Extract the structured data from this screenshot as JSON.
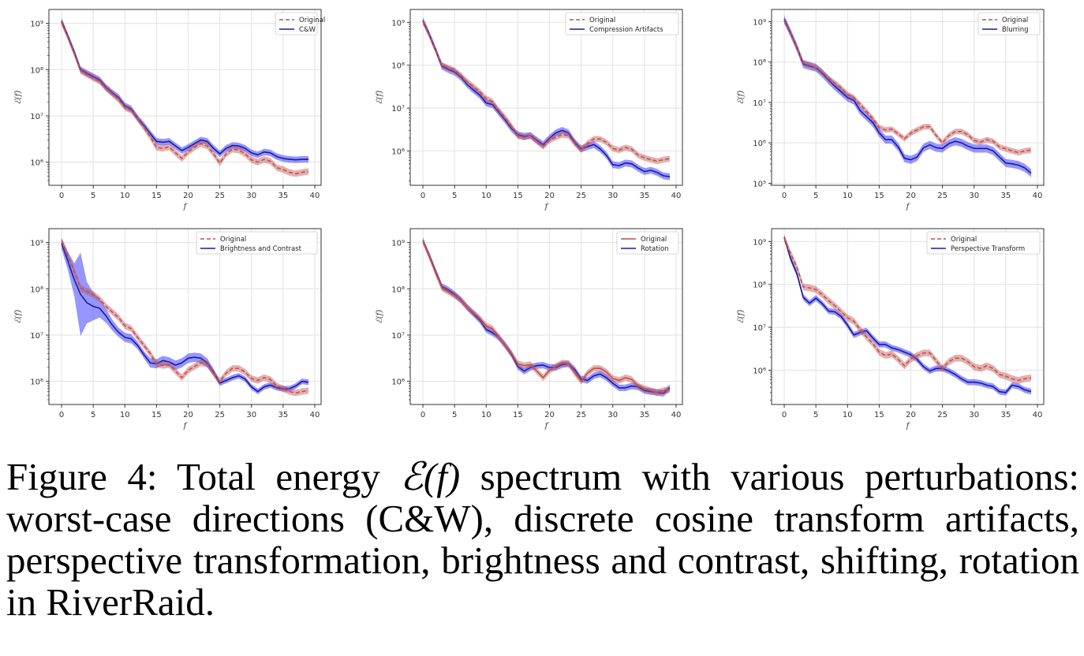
{
  "figure": {
    "caption_prefix": "Figure 4: Total energy ",
    "caption_math": "ℰ(f)",
    "caption_suffix": " spectrum with various perturbations: worst-case directions (C&W), discrete cosine transform artifacts, perspective transformation, brightness and contrast, shifting, rotation in RiverRaid."
  },
  "colors": {
    "original": "#c0504d",
    "original_band": "#c0504d",
    "perturbed": "#1a1a9e",
    "perturbed_band": "#4040ff",
    "grid": "#e6e6e6",
    "axis": "#333333"
  },
  "chart_data": [
    {
      "type": "line",
      "title": "",
      "xlabel": "f",
      "ylabel": "ℰ(f)",
      "yscale": "log",
      "xlim": [
        -2,
        41
      ],
      "xticks": [
        0,
        5,
        10,
        15,
        20,
        25,
        30,
        35,
        40
      ],
      "ylim_log10": [
        5.5,
        9.3
      ],
      "yticks_log10": [
        6,
        7,
        8,
        9
      ],
      "grid": true,
      "legend": "top-right",
      "legend_entries": [
        "Original",
        "C&W"
      ],
      "original_style": "dashed",
      "x": [
        0,
        1,
        2,
        3,
        4,
        5,
        6,
        7,
        8,
        9,
        10,
        11,
        12,
        13,
        14,
        15,
        16,
        17,
        18,
        19,
        20,
        21,
        22,
        23,
        24,
        25,
        26,
        27,
        28,
        29,
        30,
        31,
        32,
        33,
        34,
        35,
        36,
        37,
        38,
        39
      ],
      "series": [
        {
          "name": "Original",
          "log10_mean": [
            9.02,
            8.7,
            8.35,
            7.98,
            7.9,
            7.82,
            7.75,
            7.6,
            7.48,
            7.35,
            7.18,
            7.12,
            6.95,
            6.75,
            6.55,
            6.32,
            6.3,
            6.33,
            6.2,
            6.08,
            6.22,
            6.32,
            6.4,
            6.35,
            6.18,
            5.98,
            6.18,
            6.28,
            6.26,
            6.18,
            6.05,
            6.0,
            6.06,
            6.02,
            5.88,
            5.84,
            5.78,
            5.75,
            5.78,
            5.8
          ],
          "log10_band": 0.07
        },
        {
          "name": "C&W",
          "log10_mean": [
            9.05,
            8.72,
            8.38,
            8.0,
            7.92,
            7.85,
            7.78,
            7.62,
            7.5,
            7.4,
            7.22,
            7.15,
            6.95,
            6.8,
            6.62,
            6.45,
            6.43,
            6.45,
            6.35,
            6.25,
            6.32,
            6.4,
            6.48,
            6.45,
            6.3,
            6.18,
            6.3,
            6.36,
            6.35,
            6.3,
            6.2,
            6.16,
            6.22,
            6.2,
            6.12,
            6.08,
            6.06,
            6.05,
            6.06,
            6.06
          ],
          "log10_band": 0.07
        }
      ]
    },
    {
      "type": "line",
      "xlabel": "f",
      "ylabel": "ℰ(f)",
      "yscale": "log",
      "xlim": [
        -2,
        41
      ],
      "xticks": [
        0,
        5,
        10,
        15,
        20,
        25,
        30,
        35,
        40
      ],
      "ylim_log10": [
        5.2,
        9.3
      ],
      "yticks_log10": [
        6,
        7,
        8,
        9
      ],
      "grid": true,
      "legend": "top-right",
      "legend_entries": [
        "Original",
        "Compression Artifacts"
      ],
      "original_style": "dashed",
      "x": [
        0,
        1,
        2,
        3,
        4,
        5,
        6,
        7,
        8,
        9,
        10,
        11,
        12,
        13,
        14,
        15,
        16,
        17,
        18,
        19,
        20,
        21,
        22,
        23,
        24,
        25,
        26,
        27,
        28,
        29,
        30,
        31,
        32,
        33,
        34,
        35,
        36,
        37,
        38,
        39
      ],
      "series": [
        {
          "name": "Original",
          "log10_mean": [
            9.02,
            8.7,
            8.35,
            8.0,
            7.94,
            7.88,
            7.76,
            7.62,
            7.5,
            7.38,
            7.22,
            7.15,
            6.95,
            6.78,
            6.58,
            6.35,
            6.32,
            6.36,
            6.22,
            6.1,
            6.25,
            6.32,
            6.38,
            6.36,
            6.18,
            6.02,
            6.18,
            6.28,
            6.28,
            6.2,
            6.06,
            6.02,
            6.08,
            6.04,
            5.9,
            5.84,
            5.8,
            5.76,
            5.8,
            5.82
          ],
          "log10_band": 0.07
        },
        {
          "name": "Compression Artifacts",
          "log10_mean": [
            9.04,
            8.72,
            8.36,
            7.98,
            7.9,
            7.84,
            7.72,
            7.55,
            7.42,
            7.3,
            7.12,
            7.08,
            6.9,
            6.72,
            6.52,
            6.38,
            6.34,
            6.36,
            6.25,
            6.15,
            6.3,
            6.42,
            6.48,
            6.42,
            6.2,
            6.05,
            6.1,
            6.15,
            6.05,
            5.9,
            5.68,
            5.66,
            5.72,
            5.7,
            5.6,
            5.52,
            5.55,
            5.5,
            5.42,
            5.4
          ],
          "log10_band": 0.08
        }
      ]
    },
    {
      "type": "line",
      "xlabel": "f",
      "ylabel": "ℰ(f)",
      "yscale": "log",
      "xlim": [
        -2,
        41
      ],
      "xticks": [
        0,
        5,
        10,
        15,
        20,
        25,
        30,
        35,
        40
      ],
      "ylim_log10": [
        4.95,
        9.3
      ],
      "yticks_log10": [
        5,
        6,
        7,
        8,
        9
      ],
      "grid": true,
      "legend": "top-right",
      "legend_entries": [
        "Original",
        "Blurring"
      ],
      "original_style": "dashed",
      "x": [
        0,
        1,
        2,
        3,
        4,
        5,
        6,
        7,
        8,
        9,
        10,
        11,
        12,
        13,
        14,
        15,
        16,
        17,
        18,
        19,
        20,
        21,
        22,
        23,
        24,
        25,
        26,
        27,
        28,
        29,
        30,
        31,
        32,
        33,
        34,
        35,
        36,
        37,
        38,
        39
      ],
      "series": [
        {
          "name": "Original",
          "log10_mean": [
            9.02,
            8.7,
            8.35,
            7.98,
            7.92,
            7.86,
            7.75,
            7.6,
            7.48,
            7.36,
            7.2,
            7.12,
            6.95,
            6.78,
            6.6,
            6.38,
            6.32,
            6.34,
            6.22,
            6.1,
            6.24,
            6.32,
            6.4,
            6.4,
            6.18,
            6.0,
            6.18,
            6.28,
            6.28,
            6.2,
            6.06,
            6.02,
            6.08,
            6.04,
            5.9,
            5.85,
            5.8,
            5.76,
            5.8,
            5.82
          ],
          "log10_band": 0.07
        },
        {
          "name": "Blurring",
          "log10_mean": [
            9.06,
            8.72,
            8.36,
            7.95,
            7.9,
            7.86,
            7.72,
            7.55,
            7.4,
            7.26,
            7.12,
            7.05,
            6.8,
            6.65,
            6.5,
            6.25,
            6.08,
            6.08,
            5.9,
            5.62,
            5.58,
            5.65,
            5.88,
            5.95,
            5.88,
            5.86,
            5.98,
            6.04,
            6.0,
            5.92,
            5.86,
            5.86,
            5.86,
            5.8,
            5.65,
            5.5,
            5.48,
            5.45,
            5.38,
            5.25
          ],
          "log10_band": 0.1
        }
      ]
    },
    {
      "type": "line",
      "xlabel": "f",
      "ylabel": "ℰ(f)",
      "yscale": "log",
      "xlim": [
        -2,
        41
      ],
      "xticks": [
        0,
        5,
        10,
        15,
        20,
        25,
        30,
        35,
        40
      ],
      "ylim_log10": [
        5.5,
        9.3
      ],
      "yticks_log10": [
        6,
        7,
        8,
        9
      ],
      "grid": true,
      "legend": "top-right",
      "legend_entries": [
        "Original",
        "Brightness and Contrast"
      ],
      "original_style": "dashed",
      "x": [
        0,
        1,
        2,
        3,
        4,
        5,
        6,
        7,
        8,
        9,
        10,
        11,
        12,
        13,
        14,
        15,
        16,
        17,
        18,
        19,
        20,
        21,
        22,
        23,
        24,
        25,
        26,
        27,
        28,
        29,
        30,
        31,
        32,
        33,
        34,
        35,
        36,
        37,
        38,
        39
      ],
      "series": [
        {
          "name": "Original",
          "log10_mean": [
            9.04,
            8.72,
            8.38,
            8.02,
            7.94,
            7.88,
            7.78,
            7.62,
            7.5,
            7.38,
            7.2,
            7.14,
            6.95,
            6.78,
            6.6,
            6.38,
            6.34,
            6.36,
            6.22,
            6.08,
            6.24,
            6.32,
            6.4,
            6.38,
            6.18,
            6.0,
            6.18,
            6.28,
            6.28,
            6.2,
            6.06,
            6.02,
            6.08,
            6.04,
            5.9,
            5.84,
            5.78,
            5.75,
            5.78,
            5.8
          ],
          "log10_band": 0.07
        },
        {
          "name": "Brightness and Contrast",
          "log10_mean": [
            8.98,
            8.6,
            8.2,
            7.88,
            7.7,
            7.62,
            7.58,
            7.42,
            7.22,
            7.06,
            6.95,
            6.92,
            6.78,
            6.58,
            6.4,
            6.38,
            6.45,
            6.42,
            6.35,
            6.4,
            6.5,
            6.52,
            6.5,
            6.4,
            6.2,
            5.96,
            6.02,
            6.08,
            6.12,
            6.05,
            5.88,
            5.78,
            5.88,
            5.92,
            5.86,
            5.84,
            5.84,
            5.9,
            6.0,
            5.98
          ],
          "log10_band": [
            0.12,
            0.2,
            0.35,
            0.9,
            0.45,
            0.3,
            0.2,
            0.15,
            0.12,
            0.1,
            0.1,
            0.1,
            0.08,
            0.08,
            0.1,
            0.1,
            0.1,
            0.1,
            0.1,
            0.1,
            0.1,
            0.1,
            0.1,
            0.1,
            0.08,
            0.06,
            0.06,
            0.06,
            0.06,
            0.06,
            0.06,
            0.06,
            0.06,
            0.06,
            0.06,
            0.06,
            0.06,
            0.06,
            0.06,
            0.06
          ]
        }
      ]
    },
    {
      "type": "line",
      "xlabel": "f",
      "ylabel": "ℰ(f)",
      "yscale": "log",
      "xlim": [
        -2,
        41
      ],
      "xticks": [
        0,
        5,
        10,
        15,
        20,
        25,
        30,
        35,
        40
      ],
      "ylim_log10": [
        5.5,
        9.3
      ],
      "yticks_log10": [
        6,
        7,
        8,
        9
      ],
      "grid": true,
      "legend": "top-right",
      "legend_entries": [
        "Original",
        "Rotation"
      ],
      "original_style": "solid",
      "x": [
        0,
        1,
        2,
        3,
        4,
        5,
        6,
        7,
        8,
        9,
        10,
        11,
        12,
        13,
        14,
        15,
        16,
        17,
        18,
        19,
        20,
        21,
        22,
        23,
        24,
        25,
        26,
        27,
        28,
        29,
        30,
        31,
        32,
        33,
        34,
        35,
        36,
        37,
        38,
        39
      ],
      "series": [
        {
          "name": "Original",
          "log10_mean": [
            9.04,
            8.7,
            8.35,
            8.02,
            7.94,
            7.86,
            7.75,
            7.6,
            7.48,
            7.36,
            7.2,
            7.14,
            6.95,
            6.78,
            6.6,
            6.38,
            6.34,
            6.36,
            6.22,
            6.08,
            6.24,
            6.32,
            6.4,
            6.38,
            6.18,
            6.0,
            6.18,
            6.28,
            6.28,
            6.2,
            6.06,
            6.02,
            6.08,
            6.04,
            5.9,
            5.84,
            5.8,
            5.76,
            5.8,
            5.82
          ],
          "log10_band": 0.07
        },
        {
          "name": "Rotation",
          "log10_mean": [
            9.04,
            8.72,
            8.38,
            8.05,
            7.98,
            7.88,
            7.76,
            7.6,
            7.46,
            7.32,
            7.12,
            7.05,
            6.95,
            6.78,
            6.58,
            6.32,
            6.22,
            6.3,
            6.34,
            6.35,
            6.3,
            6.3,
            6.36,
            6.38,
            6.25,
            6.05,
            6.02,
            6.12,
            6.16,
            6.08,
            5.96,
            5.86,
            5.86,
            5.9,
            5.88,
            5.8,
            5.78,
            5.76,
            5.74,
            5.86
          ],
          "log10_band": 0.07
        }
      ]
    },
    {
      "type": "line",
      "xlabel": "f",
      "ylabel": "ℰ(f)",
      "yscale": "log",
      "xlim": [
        -2,
        41
      ],
      "xticks": [
        0,
        5,
        10,
        15,
        20,
        25,
        30,
        35,
        40
      ],
      "ylim_log10": [
        5.2,
        9.3
      ],
      "yticks_log10": [
        6,
        7,
        8,
        9
      ],
      "grid": true,
      "legend": "top-right",
      "legend_entries": [
        "Original",
        "Perspective Transform"
      ],
      "original_style": "dashed",
      "x": [
        0,
        1,
        2,
        3,
        4,
        5,
        6,
        7,
        8,
        9,
        10,
        11,
        12,
        13,
        14,
        15,
        16,
        17,
        18,
        19,
        20,
        21,
        22,
        23,
        24,
        25,
        26,
        27,
        28,
        29,
        30,
        31,
        32,
        33,
        34,
        35,
        36,
        37,
        38,
        39
      ],
      "series": [
        {
          "name": "Original",
          "log10_mean": [
            9.08,
            8.72,
            8.4,
            7.94,
            7.92,
            7.88,
            7.76,
            7.62,
            7.5,
            7.36,
            7.22,
            7.14,
            6.95,
            6.78,
            6.62,
            6.42,
            6.34,
            6.38,
            6.25,
            6.1,
            6.26,
            6.34,
            6.4,
            6.4,
            6.22,
            6.04,
            6.2,
            6.28,
            6.28,
            6.2,
            6.08,
            6.04,
            6.1,
            6.04,
            5.9,
            5.86,
            5.8,
            5.76,
            5.8,
            5.82
          ],
          "log10_band": 0.08
        },
        {
          "name": "Perspective Transform",
          "log10_mean": [
            9.1,
            8.6,
            8.25,
            7.7,
            7.56,
            7.68,
            7.55,
            7.38,
            7.36,
            7.25,
            7.05,
            6.82,
            6.88,
            6.92,
            6.75,
            6.6,
            6.6,
            6.52,
            6.48,
            6.42,
            6.36,
            6.25,
            6.08,
            5.98,
            6.04,
            6.04,
            5.98,
            5.9,
            5.8,
            5.72,
            5.72,
            5.7,
            5.65,
            5.62,
            5.5,
            5.48,
            5.65,
            5.62,
            5.54,
            5.5
          ],
          "log10_band": 0.07
        }
      ]
    }
  ]
}
